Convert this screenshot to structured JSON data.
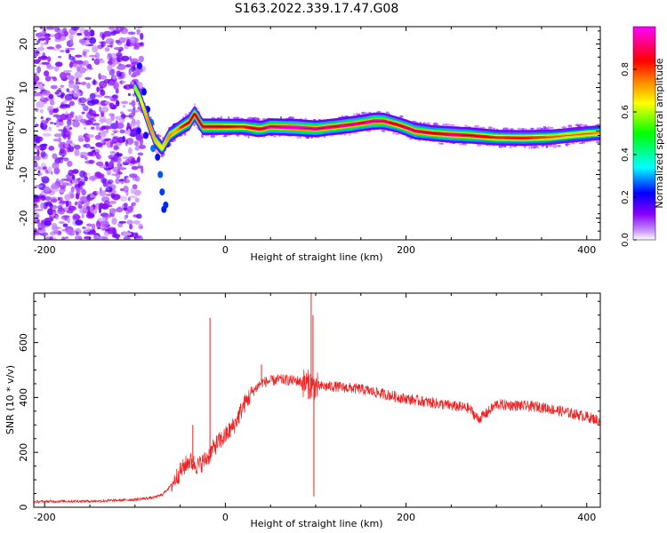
{
  "figure": {
    "title": "S163.2022.339.17.47.G08"
  },
  "chart_data": [
    {
      "type": "heatmap",
      "xlabel": "Height of straight line (km)",
      "ylabel": "Frequency (Hz)",
      "xlim": [
        -212,
        415
      ],
      "ylim": [
        -25,
        24
      ],
      "x_ticks": [
        -200,
        0,
        200,
        400
      ],
      "y_ticks": [
        20,
        10,
        0,
        -10,
        -20
      ],
      "colorbar": {
        "label": "Normalized spectral amplitude",
        "range": [
          0.0,
          1.0
        ],
        "ticks": [
          0.0,
          0.2,
          0.4,
          0.6,
          0.8
        ],
        "colors": [
          "#ffffff",
          "#cc99ff",
          "#8800ff",
          "#0000ff",
          "#00ffff",
          "#00ff00",
          "#ffff00",
          "#ff8800",
          "#ff0000",
          "#ff00ff"
        ]
      },
      "ridge": {
        "x": [
          -105,
          -95,
          -85,
          -78,
          -70,
          -62,
          -55,
          -48,
          -40,
          -34,
          -25,
          0,
          20,
          36,
          40,
          50,
          80,
          100,
          120,
          140,
          150,
          165,
          175,
          190,
          200,
          210,
          230,
          250,
          270,
          300,
          330,
          360,
          380,
          400,
          415
        ],
        "freq": [
          12,
          8,
          2,
          -2,
          -4,
          -1,
          0,
          1,
          2,
          4,
          1,
          1,
          1,
          0.5,
          0.5,
          1,
          0.8,
          0.5,
          1,
          1.5,
          1.8,
          2.3,
          2.3,
          1.5,
          0.8,
          0,
          -0.5,
          -0.8,
          -1,
          -1.5,
          -1.6,
          -1.4,
          -1,
          -0.6,
          -0.4
        ],
        "amp": [
          0.55,
          0.6,
          0.75,
          0.7,
          0.65,
          0.75,
          0.7,
          0.8,
          0.85,
          0.85,
          0.9,
          0.85,
          0.8,
          0.9,
          0.85,
          0.95,
          0.98,
          0.95,
          0.9,
          0.95,
          0.9,
          0.98,
          0.95,
          0.85,
          0.9,
          0.92,
          0.85,
          0.92,
          0.88,
          0.8,
          0.82,
          0.75,
          0.7,
          0.72,
          0.7
        ]
      }
    },
    {
      "type": "line",
      "color": "#ee2222",
      "xlabel": "Height of straight line (km)",
      "ylabel": "SNR (10 * v/v)",
      "xlim": [
        -212,
        415
      ],
      "ylim": [
        0,
        780
      ],
      "x_ticks": [
        -200,
        0,
        200,
        400
      ],
      "y_ticks": [
        0,
        200,
        400,
        600
      ],
      "envelope": {
        "x": [
          -212,
          -180,
          -150,
          -120,
          -100,
          -80,
          -70,
          -60,
          -50,
          -40,
          -30,
          -20,
          -10,
          0,
          10,
          20,
          30,
          40,
          60,
          80,
          90,
          100,
          120,
          150,
          200,
          250,
          270,
          280,
          290,
          300,
          350,
          400,
          415
        ],
        "y": [
          20,
          22,
          22,
          25,
          28,
          35,
          45,
          80,
          130,
          170,
          150,
          180,
          230,
          260,
          300,
          370,
          420,
          455,
          465,
          460,
          450,
          440,
          440,
          430,
          395,
          370,
          360,
          320,
          345,
          375,
          365,
          330,
          315
        ]
      },
      "spikes": [
        {
          "x": -17,
          "y": 690
        },
        {
          "x": 95,
          "y": 780
        },
        {
          "x": 97,
          "y": 700
        },
        {
          "x": 98,
          "y": 40
        },
        {
          "x": -36,
          "y": 300
        },
        {
          "x": 40,
          "y": 520
        }
      ]
    }
  ]
}
